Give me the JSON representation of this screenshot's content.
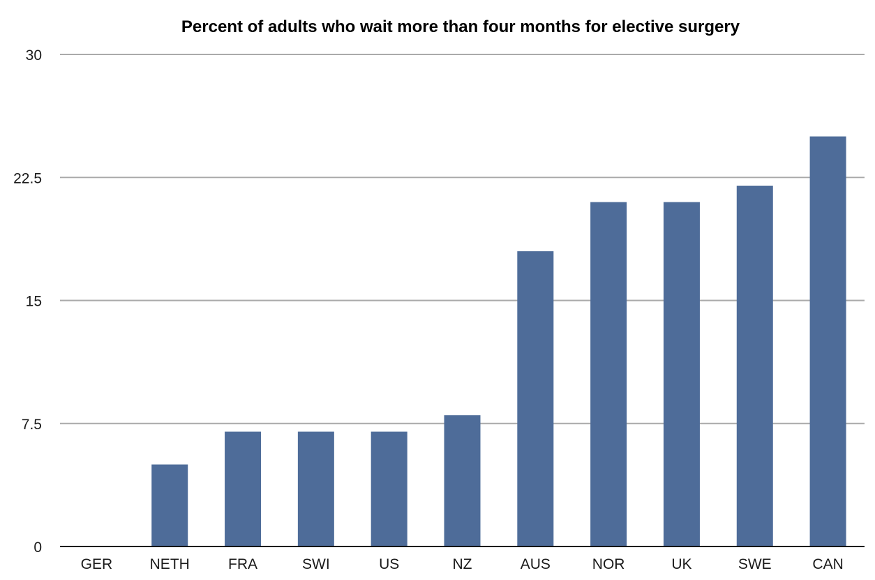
{
  "chart_data": {
    "type": "bar",
    "title": "Percent of adults who wait more than four months for elective surgery",
    "xlabel": "",
    "ylabel": "",
    "categories": [
      "GER",
      "NETH",
      "FRA",
      "SWI",
      "US",
      "NZ",
      "AUS",
      "NOR",
      "UK",
      "SWE",
      "CAN"
    ],
    "values": [
      0,
      5,
      7,
      7,
      7,
      8,
      18,
      21,
      21,
      22,
      25
    ],
    "ylim": [
      0,
      30
    ],
    "yticks": [
      0,
      7.5,
      15,
      22.5,
      30
    ],
    "ytick_labels": [
      "0",
      "7.5",
      "15",
      "22.5",
      "30"
    ],
    "grid": true,
    "legend": "none",
    "colors": {
      "bar": "#4e6c99",
      "grid": "#aaaaaa",
      "axis": "#000000"
    }
  }
}
